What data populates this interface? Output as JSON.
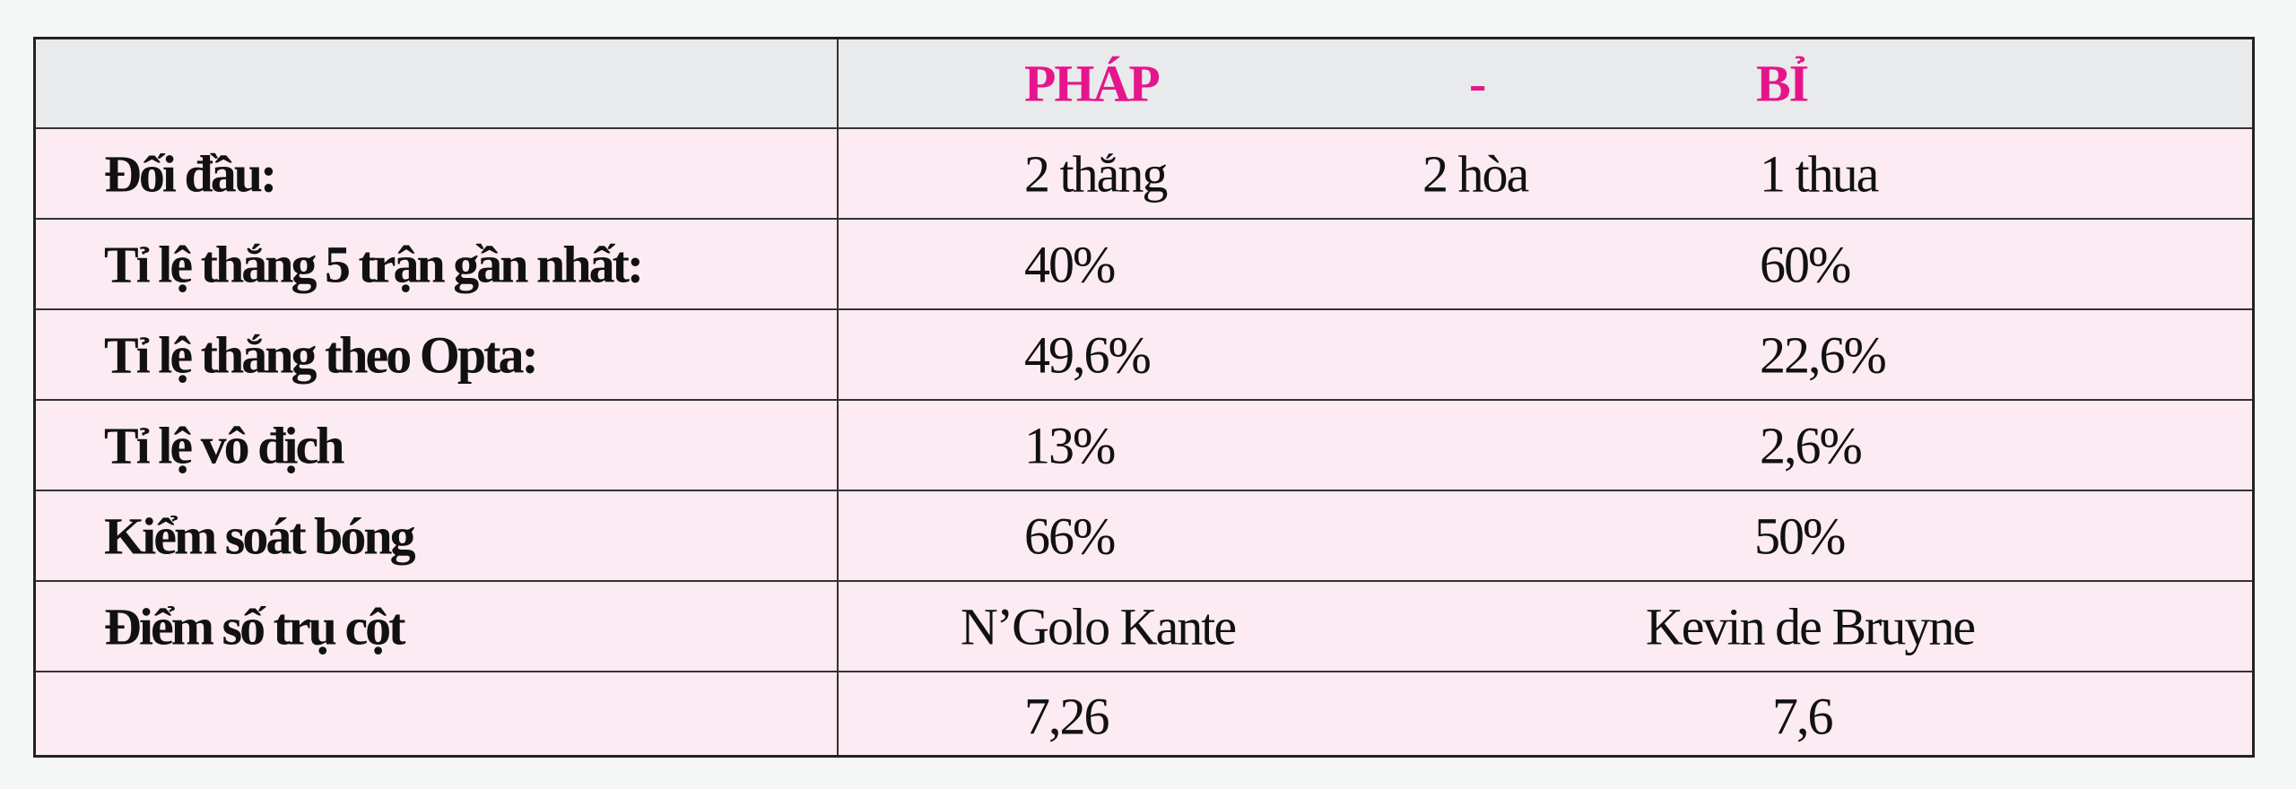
{
  "header": {
    "team_a": "PHÁP",
    "separator": "-",
    "team_b": "BỈ"
  },
  "rows": [
    {
      "label": "Đối đầu:",
      "a": "2 thắng",
      "mid": "2 hòa",
      "b": "1 thua"
    },
    {
      "label": "Tỉ lệ thắng 5 trận gần nhất:",
      "a": "40%",
      "b": "60%"
    },
    {
      "label": "Tỉ lệ thắng theo Opta:",
      "a": "49,6%",
      "b": "22,6%"
    },
    {
      "label": "Tỉ lệ vô địch",
      "a": "13%",
      "b": "2,6%"
    },
    {
      "label": "Kiểm soát bóng",
      "a": "66%",
      "b": "50%"
    },
    {
      "label": "Điểm số trụ cột",
      "a": "N’Golo Kante",
      "b": "Kevin de Bruyne"
    },
    {
      "label": "",
      "a": "7,26",
      "b": "7,6"
    }
  ],
  "colors": {
    "accent": "#e6158c",
    "header_bg": "#e9eaec",
    "row_bg": "#fcebf3"
  }
}
